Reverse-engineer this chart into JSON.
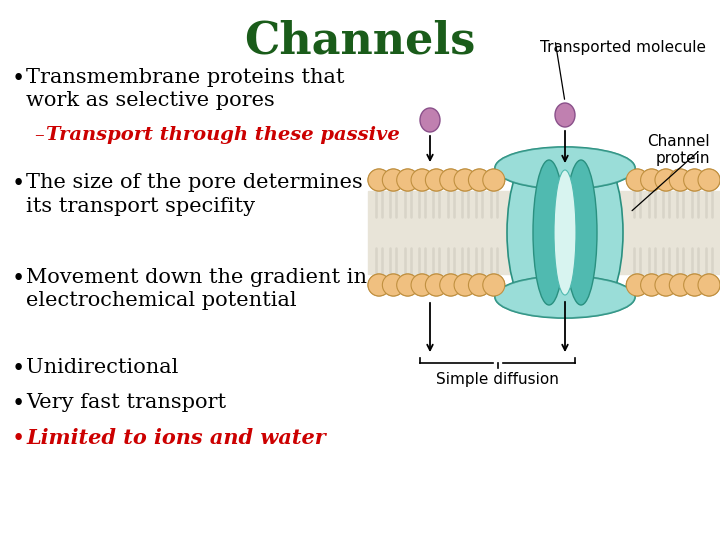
{
  "title": "Channels",
  "title_color": "#1a5c1a",
  "title_fontsize": 32,
  "title_fontweight": "bold",
  "background_color": "#ffffff",
  "bullet_color": "#000000",
  "bullet_fontsize": 15,
  "sub_bullet_color": "#cc0000",
  "sub_bullet_fontsize": 14,
  "last_bullet_color": "#cc0000",
  "bullets": [
    "Transmembrane proteins that\nwork as selective pores",
    "The size of the pore determines\nits transport specifity",
    "Movement down the gradient in\nelectrochemical potential",
    "Unidirectional",
    "Very fast transport"
  ],
  "sub_bullet": "Transport through these passive",
  "last_bullet": "Limited to ions and water",
  "image_label_transported": "Transported molecule",
  "image_label_channel": "Channel\nprotein",
  "image_label_diffusion": "Simple diffusion",
  "head_color": "#f0c080",
  "head_edge_color": "#c09040",
  "tail_color": "#d8d4c8",
  "inner_color": "#e8e4d8",
  "teal_light": "#9addd8",
  "teal_mid": "#50bab0",
  "teal_dark": "#2a9080",
  "mol_color": "#c080b0",
  "mol_edge_color": "#8a508a"
}
